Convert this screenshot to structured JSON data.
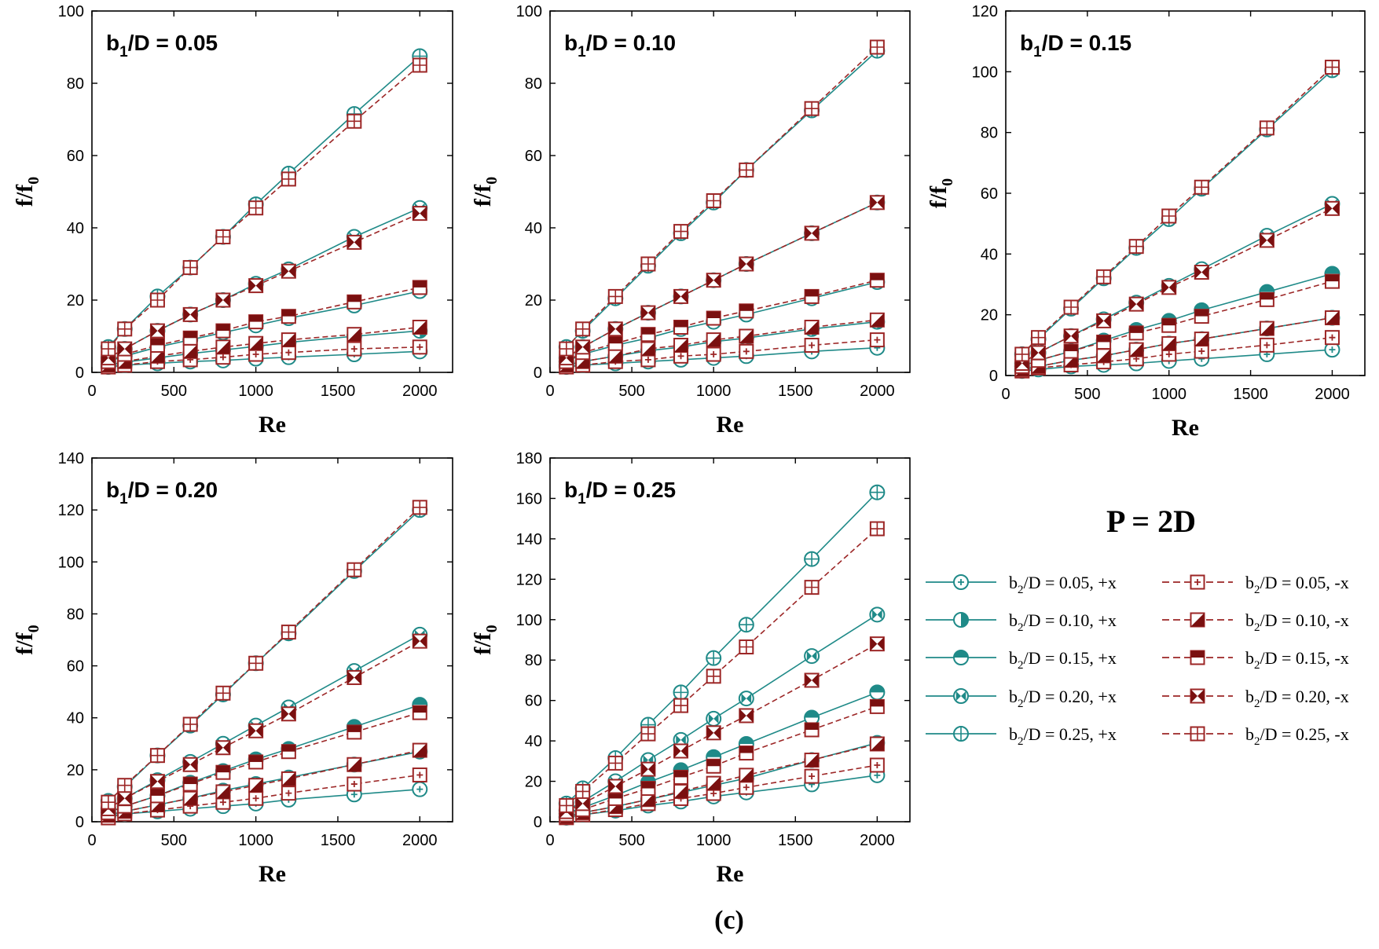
{
  "colors": {
    "plus_x": "#1f8a88",
    "minus_x": "#9c2626",
    "frame": "#000000",
    "marker_fill_plus": "#1f8a88",
    "marker_fill_minus": "#7a1010"
  },
  "figure": {
    "caption": "(c)",
    "pitch_label": "P = 2D"
  },
  "legend": {
    "entries": [
      {
        "prefix": "b",
        "sub": "2",
        "text": "/D = 0.05, +x",
        "marker": "plus-circle",
        "dir": "+x",
        "b2": "0.05"
      },
      {
        "prefix": "b",
        "sub": "2",
        "text": "/D = 0.05, -x",
        "marker": "plus-square",
        "dir": "-x",
        "b2": "0.05"
      },
      {
        "prefix": "b",
        "sub": "2",
        "text": "/D = 0.10, +x",
        "marker": "half-circle",
        "dir": "+x",
        "b2": "0.10"
      },
      {
        "prefix": "b",
        "sub": "2",
        "text": "/D = 0.10, -x",
        "marker": "half-square",
        "dir": "-x",
        "b2": "0.10"
      },
      {
        "prefix": "b",
        "sub": "2",
        "text": "/D = 0.15, +x",
        "marker": "bottom-half-circle",
        "dir": "+x",
        "b2": "0.15"
      },
      {
        "prefix": "b",
        "sub": "2",
        "text": "/D = 0.15, -x",
        "marker": "bottom-half-square",
        "dir": "-x",
        "b2": "0.15"
      },
      {
        "prefix": "b",
        "sub": "2",
        "text": "/D = 0.20, +x",
        "marker": "bowtie-circle",
        "dir": "+x",
        "b2": "0.20"
      },
      {
        "prefix": "b",
        "sub": "2",
        "text": "/D = 0.20, -x",
        "marker": "bowtie-square",
        "dir": "-x",
        "b2": "0.20"
      },
      {
        "prefix": "b",
        "sub": "2",
        "text": "/D = 0.25, +x",
        "marker": "cross-circle",
        "dir": "+x",
        "b2": "0.25"
      },
      {
        "prefix": "b",
        "sub": "2",
        "text": "/D = 0.25, -x",
        "marker": "cross-square",
        "dir": "-x",
        "b2": "0.25"
      }
    ]
  },
  "chart_data": [
    {
      "type": "line",
      "title": "b1/D = 0.05",
      "title_prefix": "b",
      "title_sub": "1",
      "title_rest": "/D = 0.05",
      "xlabel": "Re",
      "ylabel": "f/f0",
      "ylabel_main": "f/f",
      "ylabel_sub": "0",
      "xlim": [
        0,
        2200
      ],
      "ylim": [
        0,
        100
      ],
      "xticks": [
        0,
        500,
        1000,
        1500,
        2000
      ],
      "yticks": [
        0,
        20,
        40,
        60,
        80,
        100
      ],
      "x": [
        100,
        200,
        400,
        600,
        800,
        1000,
        1200,
        1600,
        2000
      ],
      "series": [
        {
          "name": "b2/D = 0.05, +x",
          "values": [
            1.5,
            2,
            2.5,
            3,
            3.3,
            3.8,
            4.2,
            5,
            5.8
          ]
        },
        {
          "name": "b2/D = 0.10, +x",
          "values": [
            2,
            2.8,
            4,
            5.2,
            6.2,
            7.2,
            8.3,
            10,
            11.5
          ]
        },
        {
          "name": "b2/D = 0.15, +x",
          "values": [
            3,
            4.5,
            7,
            9,
            11,
            13,
            15,
            18.5,
            22.5
          ]
        },
        {
          "name": "b2/D = 0.20, +x",
          "values": [
            4,
            6.5,
            11.5,
            16,
            20,
            24.5,
            28.5,
            37.5,
            45.5
          ]
        },
        {
          "name": "b2/D = 0.25, +x",
          "values": [
            7,
            12,
            21,
            29,
            37.5,
            46.5,
            55,
            71.5,
            87.5
          ]
        },
        {
          "name": "b2/D = 0.05, -x",
          "values": [
            1.5,
            2,
            3,
            3.5,
            4.2,
            5,
            5.5,
            6.5,
            7
          ]
        },
        {
          "name": "b2/D = 0.10, -x",
          "values": [
            2,
            3,
            4.5,
            5.8,
            7,
            8,
            9,
            10.5,
            12.5
          ]
        },
        {
          "name": "b2/D = 0.15, -x",
          "values": [
            3,
            5,
            7.5,
            9.5,
            11.5,
            14,
            15.5,
            19.5,
            23.5
          ]
        },
        {
          "name": "b2/D = 0.20, -x",
          "values": [
            4,
            6.5,
            11.5,
            16,
            20,
            24,
            28,
            36,
            44
          ]
        },
        {
          "name": "b2/D = 0.25, -x",
          "values": [
            6.5,
            12,
            20,
            29,
            37.5,
            45.5,
            53.5,
            69.5,
            85
          ]
        }
      ]
    },
    {
      "type": "line",
      "title": "b1/D = 0.10",
      "title_prefix": "b",
      "title_sub": "1",
      "title_rest": "/D = 0.10",
      "xlabel": "Re",
      "ylabel": "f/f0",
      "ylabel_main": "f/f",
      "ylabel_sub": "0",
      "xlim": [
        0,
        2200
      ],
      "ylim": [
        0,
        100
      ],
      "xticks": [
        0,
        500,
        1000,
        1500,
        2000
      ],
      "yticks": [
        0,
        20,
        40,
        60,
        80,
        100
      ],
      "x": [
        100,
        200,
        400,
        600,
        800,
        1000,
        1200,
        1600,
        2000
      ],
      "series": [
        {
          "name": "b2/D = 0.05, +x",
          "values": [
            1.5,
            2,
            2.5,
            3,
            3.5,
            4,
            4.5,
            5.8,
            6.8
          ]
        },
        {
          "name": "b2/D = 0.10, +x",
          "values": [
            2,
            3,
            4.5,
            6,
            7,
            8.5,
            9.5,
            12,
            14
          ]
        },
        {
          "name": "b2/D = 0.15, +x",
          "values": [
            3,
            5,
            7.5,
            9.5,
            12,
            14,
            16,
            20.5,
            25
          ]
        },
        {
          "name": "b2/D = 0.20, +x",
          "values": [
            4,
            7,
            12,
            16.5,
            21,
            25.5,
            30,
            38.5,
            47
          ]
        },
        {
          "name": "b2/D = 0.25, +x",
          "values": [
            7,
            11.5,
            20.5,
            29.5,
            38.5,
            47,
            56,
            72.5,
            89
          ]
        },
        {
          "name": "b2/D = 0.05, -x",
          "values": [
            1.5,
            2,
            3,
            3.5,
            4.5,
            5,
            5.8,
            7.5,
            9
          ]
        },
        {
          "name": "b2/D = 0.10, -x",
          "values": [
            2,
            3,
            4.5,
            6.5,
            7.5,
            9,
            10,
            12.5,
            14.5
          ]
        },
        {
          "name": "b2/D = 0.15, -x",
          "values": [
            3,
            5.5,
            8,
            10.5,
            12.5,
            15,
            17,
            21,
            25.5
          ]
        },
        {
          "name": "b2/D = 0.20, -x",
          "values": [
            4,
            7,
            12,
            16.5,
            21,
            25.5,
            30,
            38.5,
            47
          ]
        },
        {
          "name": "b2/D = 0.25, -x",
          "values": [
            6.5,
            12,
            21,
            30,
            39,
            47.5,
            56,
            73,
            90
          ]
        }
      ]
    },
    {
      "type": "line",
      "title": "b1/D = 0.15",
      "title_prefix": "b",
      "title_sub": "1",
      "title_rest": "/D = 0.15",
      "xlabel": "Re",
      "ylabel": "f/f0",
      "ylabel_main": "f/f",
      "ylabel_sub": "0",
      "xlim": [
        0,
        2200
      ],
      "ylim": [
        0,
        120
      ],
      "xticks": [
        0,
        500,
        1000,
        1500,
        2000
      ],
      "yticks": [
        0,
        20,
        40,
        60,
        80,
        100,
        120
      ],
      "x": [
        100,
        200,
        400,
        600,
        800,
        1000,
        1200,
        1600,
        2000
      ],
      "series": [
        {
          "name": "b2/D = 0.05, +x",
          "values": [
            1.5,
            2,
            3,
            3.5,
            4,
            4.8,
            5.5,
            7,
            8.5
          ]
        },
        {
          "name": "b2/D = 0.10, +x",
          "values": [
            2,
            3,
            5,
            6.5,
            8.5,
            10.5,
            12,
            15.5,
            19
          ]
        },
        {
          "name": "b2/D = 0.15, +x",
          "values": [
            3,
            5,
            8,
            11.5,
            15,
            18,
            21.5,
            27.5,
            33.5
          ]
        },
        {
          "name": "b2/D = 0.20, +x",
          "values": [
            4,
            7.5,
            13,
            18.5,
            24,
            29.5,
            35,
            46,
            56.5
          ]
        },
        {
          "name": "b2/D = 0.25, +x",
          "values": [
            7,
            12,
            22,
            32,
            42,
            51.5,
            61.5,
            81,
            100.5
          ]
        },
        {
          "name": "b2/D = 0.05, -x",
          "values": [
            1.5,
            2.5,
            3.5,
            4.5,
            5.5,
            7,
            8,
            10,
            12.5
          ]
        },
        {
          "name": "b2/D = 0.10, -x",
          "values": [
            2,
            3,
            5,
            6.5,
            8.5,
            10.5,
            12,
            15.5,
            19
          ]
        },
        {
          "name": "b2/D = 0.15, -x",
          "values": [
            3,
            5,
            8,
            11,
            14,
            16.5,
            19.5,
            25,
            31
          ]
        },
        {
          "name": "b2/D = 0.20, -x",
          "values": [
            4,
            7.5,
            13,
            18,
            23.5,
            29,
            34,
            44.5,
            55
          ]
        },
        {
          "name": "b2/D = 0.25, -x",
          "values": [
            7,
            12.5,
            22.5,
            32.5,
            42.5,
            52.5,
            62,
            81.5,
            101.5
          ]
        }
      ]
    },
    {
      "type": "line",
      "title": "b1/D = 0.20",
      "title_prefix": "b",
      "title_sub": "1",
      "title_rest": "/D = 0.20",
      "xlabel": "Re",
      "ylabel": "f/f0",
      "ylabel_main": "f/f",
      "ylabel_sub": "0",
      "xlim": [
        0,
        2200
      ],
      "ylim": [
        0,
        140
      ],
      "xticks": [
        0,
        500,
        1000,
        1500,
        2000
      ],
      "yticks": [
        0,
        20,
        40,
        60,
        80,
        100,
        120,
        140
      ],
      "x": [
        100,
        200,
        400,
        600,
        800,
        1000,
        1200,
        1600,
        2000
      ],
      "series": [
        {
          "name": "b2/D = 0.05, +x",
          "values": [
            2,
            3,
            4,
            5,
            6,
            7,
            8.5,
            10.5,
            12.5
          ]
        },
        {
          "name": "b2/D = 0.10, +x",
          "values": [
            2.5,
            4,
            6.5,
            9,
            12,
            14.5,
            17,
            22,
            27
          ]
        },
        {
          "name": "b2/D = 0.15, +x",
          "values": [
            3.5,
            6,
            10,
            15,
            19.5,
            24,
            28,
            36.5,
            45
          ]
        },
        {
          "name": "b2/D = 0.20, +x",
          "values": [
            5,
            9,
            16,
            23,
            30,
            37,
            44,
            58,
            72
          ]
        },
        {
          "name": "b2/D = 0.25, +x",
          "values": [
            8,
            13.5,
            25.5,
            37,
            49,
            61,
            72.5,
            96.5,
            120
          ]
        },
        {
          "name": "b2/D = 0.05, -x",
          "values": [
            1.5,
            3,
            4.5,
            6,
            7.5,
            9,
            11,
            14.5,
            18
          ]
        },
        {
          "name": "b2/D = 0.10, -x",
          "values": [
            2.5,
            4,
            6.5,
            9,
            11.5,
            14,
            16.5,
            22,
            27.5
          ]
        },
        {
          "name": "b2/D = 0.15, -x",
          "values": [
            3.5,
            6,
            10,
            14.5,
            19,
            23,
            27,
            34.5,
            42
          ]
        },
        {
          "name": "b2/D = 0.20, -x",
          "values": [
            5,
            9,
            15.5,
            22,
            28.5,
            35,
            41.5,
            55.5,
            69.5
          ]
        },
        {
          "name": "b2/D = 0.25, -x",
          "values": [
            7.5,
            14,
            25.5,
            37.5,
            49.5,
            61,
            73,
            97,
            121
          ]
        }
      ]
    },
    {
      "type": "line",
      "title": "b1/D = 0.25",
      "title_prefix": "b",
      "title_sub": "1",
      "title_rest": "/D = 0.25",
      "xlabel": "Re",
      "ylabel": "f/f0",
      "ylabel_main": "f/f",
      "ylabel_sub": "0",
      "xlim": [
        0,
        2200
      ],
      "ylim": [
        0,
        180
      ],
      "xticks": [
        0,
        500,
        1000,
        1500,
        2000
      ],
      "yticks": [
        0,
        20,
        40,
        60,
        80,
        100,
        120,
        140,
        160,
        180
      ],
      "x": [
        100,
        200,
        400,
        600,
        800,
        1000,
        1200,
        1600,
        2000
      ],
      "series": [
        {
          "name": "b2/D = 0.05, +x",
          "values": [
            2,
            3.5,
            5.5,
            8,
            10,
            12.5,
            14.5,
            18.5,
            23
          ]
        },
        {
          "name": "b2/D = 0.10, +x",
          "values": [
            2.5,
            4.5,
            7.5,
            11,
            14.5,
            18,
            21.5,
            30.5,
            39
          ]
        },
        {
          "name": "b2/D = 0.15, +x",
          "values": [
            4,
            7,
            13,
            19.5,
            25.5,
            32,
            38.5,
            51.5,
            64
          ]
        },
        {
          "name": "b2/D = 0.20, +x",
          "values": [
            5.5,
            10,
            20,
            30.5,
            40.5,
            51,
            61,
            82,
            102.5
          ]
        },
        {
          "name": "b2/D = 0.25, +x",
          "values": [
            9,
            16.5,
            31.5,
            48,
            64,
            81,
            97.5,
            130,
            163
          ]
        },
        {
          "name": "b2/D = 0.05, -x",
          "values": [
            2,
            3.5,
            6,
            9,
            11.5,
            14,
            17,
            22.5,
            28
          ]
        },
        {
          "name": "b2/D = 0.10, -x",
          "values": [
            2.5,
            4.5,
            7.5,
            11,
            15,
            19,
            23,
            30.5,
            38.5
          ]
        },
        {
          "name": "b2/D = 0.15, -x",
          "values": [
            3.5,
            6,
            11.5,
            16.5,
            22,
            27.5,
            34,
            45.5,
            57
          ]
        },
        {
          "name": "b2/D = 0.20, -x",
          "values": [
            5,
            9,
            17.5,
            26,
            35,
            44,
            52.5,
            70,
            88
          ]
        },
        {
          "name": "b2/D = 0.25, -x",
          "values": [
            8,
            15,
            29,
            43.5,
            57.5,
            72,
            86.5,
            116,
            145
          ]
        }
      ]
    }
  ]
}
